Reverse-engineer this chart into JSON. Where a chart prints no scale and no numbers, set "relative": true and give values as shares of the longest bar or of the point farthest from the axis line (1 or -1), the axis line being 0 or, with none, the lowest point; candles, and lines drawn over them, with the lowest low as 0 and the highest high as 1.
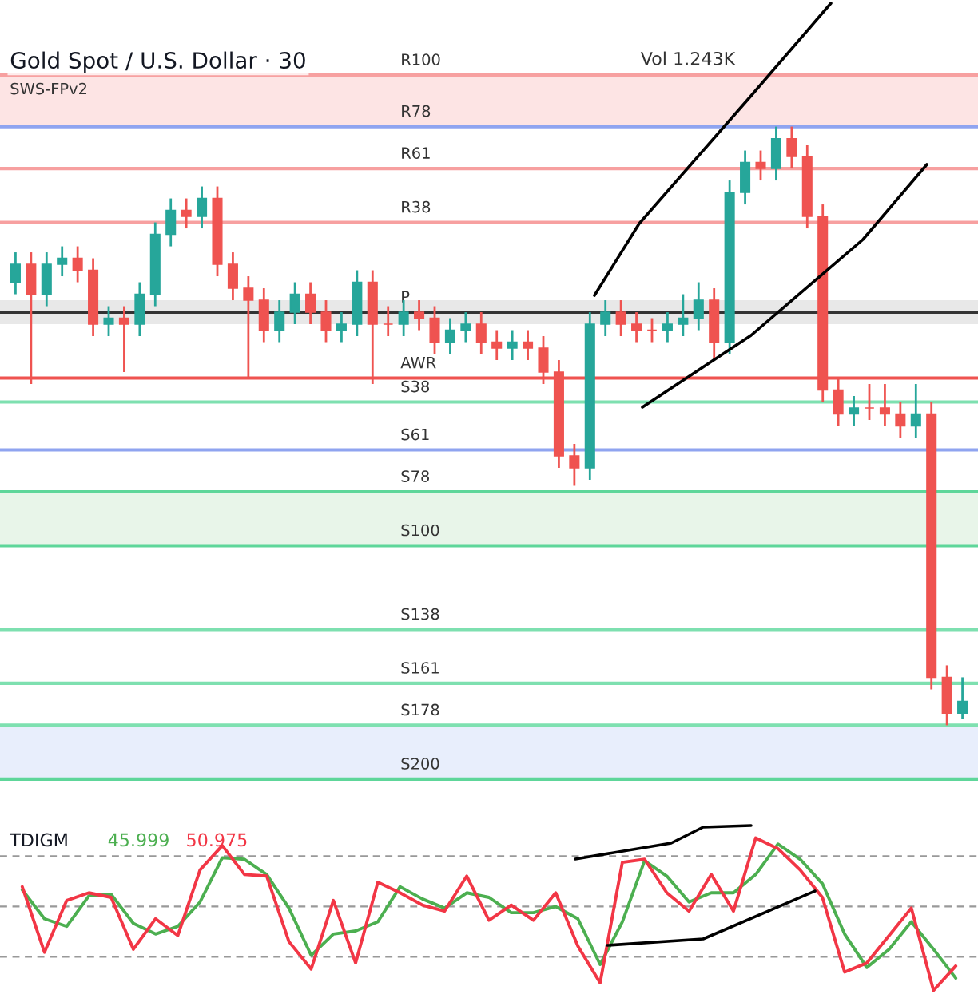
{
  "chart_data": [
    {
      "type": "candlestick",
      "title": "Gold Spot / U.S. Dollar · 30",
      "subtitle": "SWS-FPv2",
      "annotations": [
        "Vol 1.243K"
      ],
      "relative": true,
      "legend": false,
      "categories": [
        null,
        null,
        null,
        null,
        null,
        null,
        null,
        null,
        null,
        null,
        null,
        null,
        null,
        null,
        null,
        null,
        null,
        null,
        null,
        null,
        null,
        null,
        null,
        null,
        null,
        null,
        null,
        null,
        null,
        null,
        null,
        null,
        null,
        null,
        null,
        null,
        null,
        null,
        null,
        null,
        null,
        null,
        null,
        null,
        null,
        null,
        null,
        null,
        null,
        null,
        null,
        null,
        null,
        null,
        null,
        null,
        null,
        null,
        null,
        null,
        null,
        null
      ],
      "ohlc": [
        [
          0.74,
          0.79,
          0.72,
          0.77
        ],
        [
          0.77,
          0.79,
          0.57,
          0.72
        ],
        [
          0.72,
          0.79,
          0.7,
          0.77
        ],
        [
          0.77,
          0.8,
          0.75,
          0.78
        ],
        [
          0.78,
          0.8,
          0.74,
          0.76
        ],
        [
          0.76,
          0.78,
          0.65,
          0.67
        ],
        [
          0.67,
          0.7,
          0.65,
          0.68
        ],
        [
          0.68,
          0.7,
          0.59,
          0.67
        ],
        [
          0.67,
          0.74,
          0.65,
          0.72
        ],
        [
          0.72,
          0.84,
          0.7,
          0.82
        ],
        [
          0.82,
          0.88,
          0.8,
          0.86
        ],
        [
          0.86,
          0.88,
          0.83,
          0.85
        ],
        [
          0.85,
          0.9,
          0.83,
          0.88
        ],
        [
          0.88,
          0.9,
          0.75,
          0.77
        ],
        [
          0.77,
          0.79,
          0.71,
          0.73
        ],
        [
          0.73,
          0.75,
          0.58,
          0.71
        ],
        [
          0.71,
          0.73,
          0.64,
          0.66
        ],
        [
          0.66,
          0.71,
          0.64,
          0.69
        ],
        [
          0.69,
          0.74,
          0.67,
          0.72
        ],
        [
          0.72,
          0.74,
          0.67,
          0.69
        ],
        [
          0.69,
          0.71,
          0.64,
          0.66
        ],
        [
          0.66,
          0.69,
          0.64,
          0.67
        ],
        [
          0.67,
          0.76,
          0.65,
          0.74
        ],
        [
          0.74,
          0.76,
          0.57,
          0.67
        ],
        [
          0.67,
          0.7,
          0.65,
          0.67
        ],
        [
          0.67,
          0.71,
          0.65,
          0.69
        ],
        [
          0.69,
          0.71,
          0.66,
          0.68
        ],
        [
          0.68,
          0.7,
          0.62,
          0.64
        ],
        [
          0.64,
          0.68,
          0.62,
          0.66
        ],
        [
          0.66,
          0.69,
          0.64,
          0.67
        ],
        [
          0.67,
          0.69,
          0.62,
          0.64
        ],
        [
          0.64,
          0.66,
          0.61,
          0.63
        ],
        [
          0.63,
          0.66,
          0.61,
          0.64
        ],
        [
          0.64,
          0.66,
          0.61,
          0.63
        ],
        [
          0.63,
          0.65,
          0.57,
          0.59
        ],
        [
          0.59,
          0.61,
          0.43,
          0.45
        ],
        [
          0.45,
          0.47,
          0.4,
          0.43
        ],
        [
          0.43,
          0.69,
          0.41,
          0.67
        ],
        [
          0.67,
          0.71,
          0.65,
          0.69
        ],
        [
          0.69,
          0.71,
          0.65,
          0.67
        ],
        [
          0.67,
          0.69,
          0.64,
          0.66
        ],
        [
          0.66,
          0.68,
          0.64,
          0.66
        ],
        [
          0.66,
          0.69,
          0.64,
          0.67
        ],
        [
          0.67,
          0.72,
          0.65,
          0.68
        ],
        [
          0.68,
          0.74,
          0.66,
          0.71
        ],
        [
          0.71,
          0.73,
          0.61,
          0.64
        ],
        [
          0.64,
          0.91,
          0.62,
          0.89
        ],
        [
          0.89,
          0.96,
          0.87,
          0.94
        ],
        [
          0.94,
          0.96,
          0.91,
          0.93
        ],
        [
          0.93,
          1.0,
          0.91,
          0.98
        ],
        [
          0.98,
          1.0,
          0.93,
          0.95
        ],
        [
          0.95,
          0.97,
          0.83,
          0.85
        ],
        [
          0.85,
          0.87,
          0.54,
          0.56
        ],
        [
          0.56,
          0.58,
          0.5,
          0.52
        ],
        [
          0.52,
          0.55,
          0.5,
          0.53
        ],
        [
          0.53,
          0.57,
          0.51,
          0.53
        ],
        [
          0.53,
          0.57,
          0.5,
          0.52
        ],
        [
          0.52,
          0.54,
          0.48,
          0.5
        ],
        [
          0.5,
          0.57,
          0.48,
          0.52
        ],
        [
          0.52,
          0.54,
          0.06,
          0.08
        ],
        [
          0.08,
          0.1,
          0.0,
          0.02
        ],
        [
          0.02,
          0.08,
          0.01,
          0.04
        ]
      ],
      "colors": [
        "#26a69a",
        "#ef5350",
        "#26a69a",
        "#26a69a",
        "#ef5350",
        "#ef5350",
        "#26a69a",
        "#ef5350",
        "#26a69a",
        "#26a69a",
        "#26a69a",
        "#ef5350",
        "#26a69a",
        "#ef5350",
        "#ef5350",
        "#ef5350",
        "#ef5350",
        "#26a69a",
        "#26a69a",
        "#ef5350",
        "#ef5350",
        "#26a69a",
        "#26a69a",
        "#ef5350",
        "#ef5350",
        "#26a69a",
        "#ef5350",
        "#ef5350",
        "#26a69a",
        "#26a69a",
        "#ef5350",
        "#ef5350",
        "#26a69a",
        "#ef5350",
        "#ef5350",
        "#ef5350",
        "#ef5350",
        "#26a69a",
        "#26a69a",
        "#ef5350",
        "#ef5350",
        "#ef5350",
        "#26a69a",
        "#26a69a",
        "#26a69a",
        "#ef5350",
        "#26a69a",
        "#26a69a",
        "#ef5350",
        "#26a69a",
        "#ef5350",
        "#ef5350",
        "#ef5350",
        "#ef5350",
        "#26a69a",
        "#ef5350",
        "#ef5350",
        "#ef5350",
        "#26a69a",
        "#ef5350",
        "#ef5350",
        "#26a69a"
      ],
      "ref_lines": [
        {
          "axis": "y",
          "value": 1.086,
          "label": "R100",
          "color": "#f7a0a0"
        },
        {
          "axis": "y",
          "value": 1.0,
          "label": "R78",
          "color": "#8fa4f0"
        },
        {
          "axis": "y",
          "value": 0.93,
          "label": "R61",
          "color": "#f7a0a0"
        },
        {
          "axis": "y",
          "value": 0.84,
          "label": "R38",
          "color": "#f7a0a0"
        },
        {
          "axis": "y",
          "value": 0.69,
          "label": "P",
          "color": "#333333"
        },
        {
          "axis": "y",
          "value": 0.58,
          "label": "AWR",
          "color": "#ef5350"
        },
        {
          "axis": "y",
          "value": 0.54,
          "label": "S38",
          "color": "#7ee0b0"
        },
        {
          "axis": "y",
          "value": 0.46,
          "label": "S61",
          "color": "#8fa4f0"
        },
        {
          "axis": "y",
          "value": 0.39,
          "label": "S78",
          "color": "#5ed69a"
        },
        {
          "axis": "y",
          "value": 0.3,
          "label": "S100",
          "color": "#5ed69a"
        },
        {
          "axis": "y",
          "value": 0.16,
          "label": "S138",
          "color": "#7ee0b0"
        },
        {
          "axis": "y",
          "value": 0.07,
          "label": "S161",
          "color": "#7ee0b0"
        },
        {
          "axis": "y",
          "value": 0.0,
          "label": "S178",
          "color": "#7ee0b0"
        },
        {
          "axis": "y",
          "value": -0.09,
          "label": "S200",
          "color": "#5ed69a"
        }
      ],
      "bands": [
        {
          "axis": "y",
          "from": 1.0,
          "to": 1.086,
          "color": "#fde4e4"
        },
        {
          "axis": "y",
          "from": 0.67,
          "to": 0.71,
          "color": "#e8e8e8"
        },
        {
          "axis": "y",
          "from": 0.3,
          "to": 0.39,
          "color": "#e8f5e9"
        },
        {
          "axis": "y",
          "from": -0.09,
          "to": 0.0,
          "color": "#e8eefc"
        }
      ]
    },
    {
      "type": "line",
      "title": "TDIGM",
      "relative": true,
      "legend": "top left",
      "categories": [
        null,
        null,
        null,
        null,
        null,
        null,
        null,
        null,
        null,
        null,
        null,
        null,
        null,
        null,
        null,
        null,
        null,
        null,
        null,
        null,
        null,
        null,
        null,
        null,
        null,
        null,
        null,
        null,
        null,
        null,
        null,
        null,
        null,
        null,
        null,
        null,
        null,
        null,
        null,
        null,
        null,
        null,
        null
      ],
      "series": [
        {
          "name": "45.999",
          "color": "#4caf50",
          "values": [
            0.66,
            0.47,
            0.42,
            0.62,
            0.63,
            0.44,
            0.37,
            0.42,
            0.58,
            0.87,
            0.86,
            0.76,
            0.54,
            0.23,
            0.37,
            0.39,
            0.45,
            0.68,
            0.6,
            0.54,
            0.64,
            0.61,
            0.51,
            0.51,
            0.55,
            0.47,
            0.17,
            0.45,
            0.85,
            0.75,
            0.58,
            0.64,
            0.64,
            0.76,
            0.96,
            0.86,
            0.7,
            0.37,
            0.15,
            0.27,
            0.45,
            0.27,
            0.08
          ]
        },
        {
          "name": "50.975",
          "color": "#f23645",
          "values": [
            0.68,
            0.25,
            0.59,
            0.64,
            0.61,
            0.27,
            0.47,
            0.36,
            0.79,
            0.95,
            0.76,
            0.75,
            0.32,
            0.14,
            0.59,
            0.18,
            0.71,
            0.64,
            0.56,
            0.52,
            0.75,
            0.46,
            0.56,
            0.46,
            0.64,
            0.29,
            0.05,
            0.84,
            0.86,
            0.64,
            0.52,
            0.76,
            0.52,
            1.0,
            0.93,
            0.79,
            0.61,
            0.12,
            0.18,
            0.36,
            0.54,
            0.0,
            0.16
          ]
        }
      ],
      "ref_lines": [
        {
          "axis": "y",
          "value": 0.88,
          "color": "#999999",
          "line_style": "dashed"
        },
        {
          "axis": "y",
          "value": 0.55,
          "color": "#999999",
          "line_style": "dashed"
        },
        {
          "axis": "y",
          "value": 0.22,
          "color": "#999999",
          "line_style": "dashed"
        }
      ]
    }
  ]
}
